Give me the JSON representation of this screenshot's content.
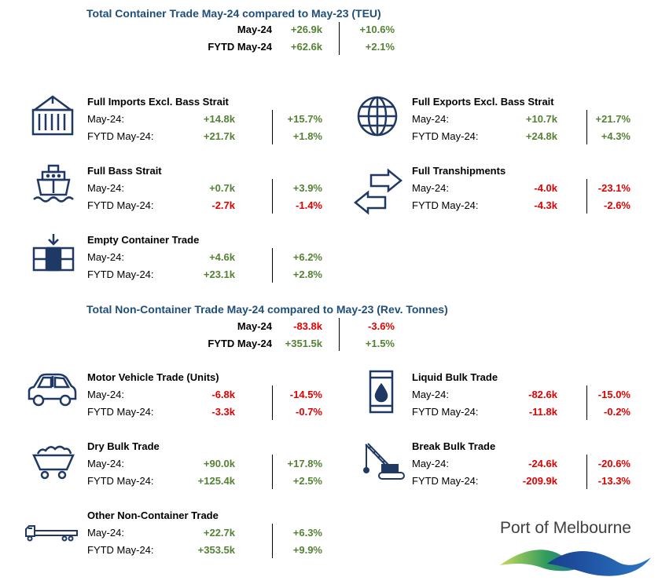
{
  "container_summary": {
    "title": "Total Container Trade May-24 compared to May-23 (TEU)",
    "rows": [
      {
        "label": "May-24",
        "value": "+26.9k",
        "pct": "+10.6%"
      },
      {
        "label": "FYTD May-24",
        "value": "+62.6k",
        "pct": "+2.1%"
      }
    ]
  },
  "non_container_summary": {
    "title": "Total Non-Container Trade May-24 compared to May-23 (Rev. Tonnes)",
    "rows": [
      {
        "label": "May-24",
        "value": "-83.8k",
        "pct": "-3.6%"
      },
      {
        "label": "FYTD May-24",
        "value": "+351.5k",
        "pct": "+1.5%"
      }
    ]
  },
  "row_labels": {
    "month": "May-24:",
    "fytd": "FYTD May-24:"
  },
  "sections": {
    "full_imports": {
      "title": "Full Imports Excl. Bass Strait",
      "icon": "container-icon",
      "may_value": "+14.8k",
      "may_pct": "+15.7%",
      "fytd_value": "+21.7k",
      "fytd_pct": "+1.8%"
    },
    "full_exports": {
      "title": "Full Exports Excl. Bass Strait",
      "icon": "globe-icon",
      "may_value": "+10.7k",
      "may_pct": "+21.7%",
      "fytd_value": "+24.8k",
      "fytd_pct": "+4.3%"
    },
    "bass_strait": {
      "title": "Full Bass Strait",
      "icon": "ship-icon",
      "may_value": "+0.7k",
      "may_pct": "+3.9%",
      "fytd_value": "-2.7k",
      "fytd_pct": "-1.4%"
    },
    "transhipments": {
      "title": "Full Transhipments",
      "icon": "transfer-arrows-icon",
      "may_value": "-4.0k",
      "may_pct": "-23.1%",
      "fytd_value": "-4.3k",
      "fytd_pct": "-2.6%"
    },
    "empty_container": {
      "title": "Empty Container Trade",
      "icon": "empty-container-icon",
      "may_value": "+4.6k",
      "may_pct": "+6.2%",
      "fytd_value": "+23.1k",
      "fytd_pct": "+2.8%"
    },
    "motor_vehicle": {
      "title": "Motor Vehicle Trade (Units)",
      "icon": "car-icon",
      "may_value": "-6.8k",
      "may_pct": "-14.5%",
      "fytd_value": "-3.3k",
      "fytd_pct": "-0.7%"
    },
    "liquid_bulk": {
      "title": "Liquid Bulk Trade",
      "icon": "oil-drum-icon",
      "may_value": "-82.6k",
      "may_pct": "-15.0%",
      "fytd_value": "-11.8k",
      "fytd_pct": "-0.2%"
    },
    "dry_bulk": {
      "title": "Dry Bulk Trade",
      "icon": "mine-cart-icon",
      "may_value": "+90.0k",
      "may_pct": "+17.8%",
      "fytd_value": "+125.4k",
      "fytd_pct": "+2.5%"
    },
    "break_bulk": {
      "title": "Break Bulk Trade",
      "icon": "crane-icon",
      "may_value": "-24.6k",
      "may_pct": "-20.6%",
      "fytd_value": "-209.9k",
      "fytd_pct": "-13.3%"
    },
    "other_non_container": {
      "title": "Other Non-Container Trade",
      "icon": "flatbed-truck-icon",
      "may_value": "+22.7k",
      "may_pct": "+6.3%",
      "fytd_value": "+353.5k",
      "fytd_pct": "+9.9%"
    }
  },
  "colors": {
    "positive": "#548235",
    "negative": "#e00000",
    "title": "#1f4e79",
    "icon": "#1f3864"
  },
  "logo": {
    "text": "Port of Melbourne"
  }
}
